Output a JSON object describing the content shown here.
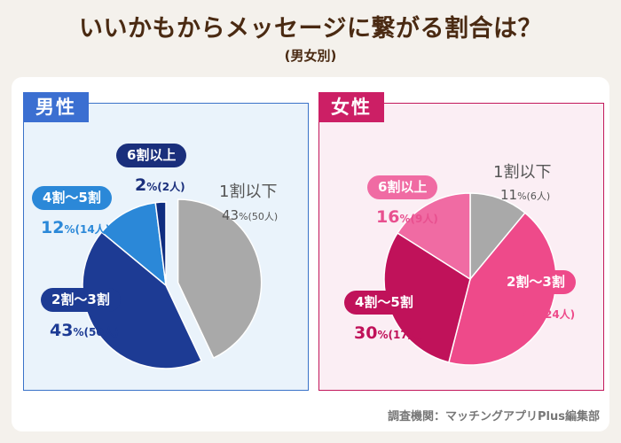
{
  "title": "いいかもからメッセージに繋がる割合は？",
  "subtitle": "(男女別)",
  "source": "調査機関：マッチングアプリPlus編集部",
  "chart_data": [
    {
      "type": "pie",
      "panel_label": "男性",
      "slices": [
        {
          "label": "1割以下",
          "percent": 43,
          "count": "(50人)",
          "color": "#a9a9a9"
        },
        {
          "label": "2割～3割",
          "percent": 43,
          "count": "(50人)",
          "color": "#1d3b94"
        },
        {
          "label": "4割～5割",
          "percent": 12,
          "count": "(14人)",
          "color": "#2b88d8"
        },
        {
          "label": "6割以上",
          "percent": 2,
          "count": "(2人)",
          "color": "#0f2d80"
        }
      ],
      "pct_unit": "%"
    },
    {
      "type": "pie",
      "panel_label": "女性",
      "slices": [
        {
          "label": "1割以下",
          "percent": 11,
          "count": "(6人)",
          "color": "#a9a9a9"
        },
        {
          "label": "2割～3割",
          "percent": 43,
          "count": "(24人)",
          "color": "#ee4a8a"
        },
        {
          "label": "4割～5割",
          "percent": 30,
          "count": "(17人)",
          "color": "#c0125a"
        },
        {
          "label": "6割以上",
          "percent": 16,
          "count": "(9人)",
          "color": "#f06ba3"
        }
      ],
      "pct_unit": "%"
    }
  ]
}
